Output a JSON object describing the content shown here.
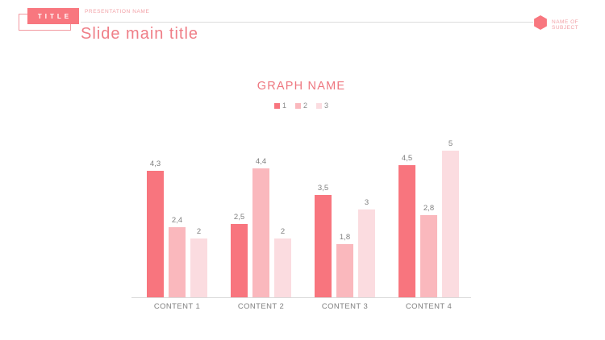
{
  "header": {
    "title_box_label": "TITLE",
    "presentation_name": "PRESENTATION NAME",
    "subject_name": "NAME OF SUBJECT",
    "slide_title": "Slide main title"
  },
  "chart": {
    "title": "GRAPH NAME"
  },
  "chart_data": {
    "type": "bar",
    "title": "GRAPH NAME",
    "categories": [
      "CONTENT 1",
      "CONTENT 2",
      "CONTENT 3",
      "CONTENT 4"
    ],
    "series": [
      {
        "name": "1",
        "color": "#f8757e",
        "values": [
          4.3,
          2.5,
          3.5,
          4.5
        ],
        "labels": [
          "4,3",
          "2,5",
          "3,5",
          "4,5"
        ]
      },
      {
        "name": "2",
        "color": "#fab8bd",
        "values": [
          2.4,
          4.4,
          1.8,
          2.8
        ],
        "labels": [
          "2,4",
          "4,4",
          "1,8",
          "2,8"
        ]
      },
      {
        "name": "3",
        "color": "#fbdce0",
        "values": [
          2,
          2,
          3,
          5
        ],
        "labels": [
          "2",
          "2",
          "3",
          "5"
        ]
      }
    ],
    "ylim": [
      0,
      5.5
    ],
    "value_labels_visible": true,
    "legend_position": "top",
    "grid": false,
    "axis_line_color": "#d9d9d9"
  },
  "colors": {
    "accent": "#f8777f",
    "accent_text": "#ef7e87",
    "light_pink_text": "#f2a0a6",
    "gray_text": "#7f7f7f",
    "line": "#dcdcdc"
  }
}
